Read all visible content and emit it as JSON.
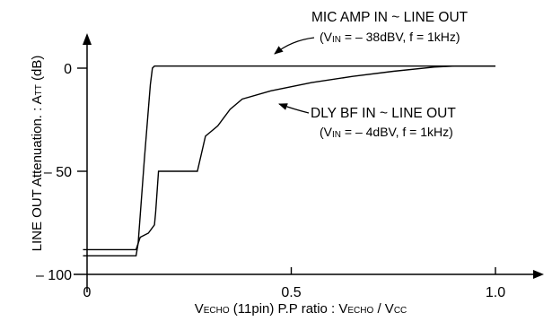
{
  "chart_data": {
    "type": "line",
    "xlabel": {
      "pre": "V",
      "sub": "ECHO",
      "mid": " (11pin) P.P ratio : V",
      "sub2": "ECHO",
      "mid2": " / V",
      "sub3": "CC"
    },
    "ylabel": {
      "pre": "LINE  OUT  Attenuation. : A",
      "sub": "TT",
      "post": " (dB)"
    },
    "xlim": [
      0,
      1.1
    ],
    "ylim": [
      -100,
      12
    ],
    "x_ticks": [
      {
        "value": 0,
        "label": "0"
      },
      {
        "value": 0.5,
        "label": "0.5"
      },
      {
        "value": 1.0,
        "label": "1.0"
      }
    ],
    "y_ticks": [
      {
        "value": 0,
        "label": "0"
      },
      {
        "value": -50,
        "label": "– 50"
      },
      {
        "value": -100,
        "label": "– 100"
      }
    ],
    "grid": false,
    "series": [
      {
        "name": "MIC  AMP  IN ~ LINE  OUT",
        "condition": {
          "pre": "(V",
          "sub": "IN",
          "post": " = – 38dBV,  f = 1kHz)"
        },
        "points": [
          [
            -0.01,
            -88
          ],
          [
            0.12,
            -88
          ],
          [
            0.125,
            -85
          ],
          [
            0.14,
            -45
          ],
          [
            0.155,
            -8
          ],
          [
            0.16,
            0
          ],
          [
            0.165,
            1
          ],
          [
            1.0,
            1
          ]
        ]
      },
      {
        "name": "DLY  BF  IN ~ LINE  OUT",
        "condition": {
          "pre": "(V",
          "sub": "IN",
          "post": " = – 4dBV,  f = 1kHz)"
        },
        "points": [
          [
            -0.01,
            -91
          ],
          [
            0.12,
            -91
          ],
          [
            0.125,
            -85
          ],
          [
            0.13,
            -82
          ],
          [
            0.15,
            -80
          ],
          [
            0.165,
            -76
          ],
          [
            0.168,
            -70
          ],
          [
            0.175,
            -50
          ],
          [
            0.27,
            -50
          ],
          [
            0.29,
            -33
          ],
          [
            0.32,
            -28
          ],
          [
            0.35,
            -20
          ],
          [
            0.38,
            -15
          ],
          [
            0.45,
            -11
          ],
          [
            0.55,
            -7
          ],
          [
            0.65,
            -4
          ],
          [
            0.75,
            -1.5
          ],
          [
            0.85,
            0.5
          ],
          [
            0.9,
            1
          ],
          [
            1.0,
            1
          ]
        ]
      }
    ]
  }
}
